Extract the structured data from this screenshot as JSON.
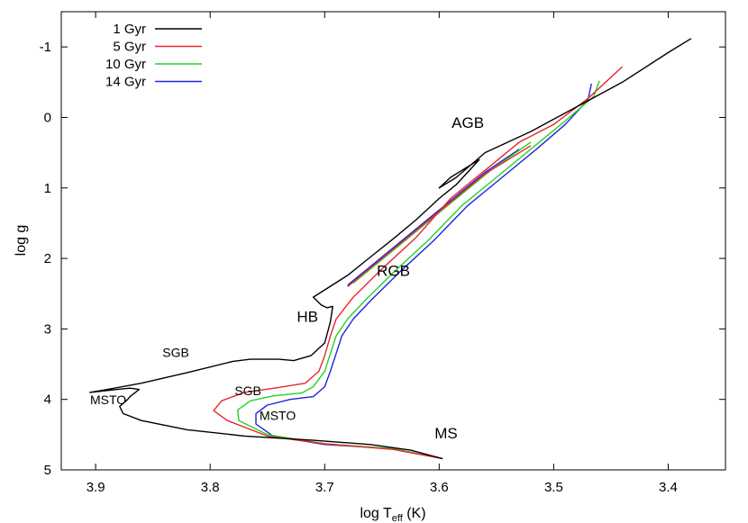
{
  "chart_data": {
    "type": "line",
    "xlabel_main": "log T",
    "xlabel_sub": "eff",
    "xlabel_unit": " (K)",
    "ylabel": "log g",
    "xlim": [
      3.93,
      3.35
    ],
    "ylim": [
      -1.5,
      5
    ],
    "x_ticks": [
      3.9,
      3.8,
      3.7,
      3.6,
      3.5,
      3.4
    ],
    "x_tick_labels": [
      "3.9",
      "3.8",
      "3.7",
      "3.6",
      "3.5",
      "3.4"
    ],
    "y_ticks": [
      -1,
      0,
      1,
      2,
      3,
      4,
      5
    ],
    "y_tick_labels": [
      "-1",
      "0",
      "1",
      "2",
      "3",
      "4",
      "5"
    ],
    "legend_position": "top-left",
    "series": [
      {
        "name": "1 Gyr",
        "color": "#000000",
        "points": [
          [
            3.597,
            4.84
          ],
          [
            3.625,
            4.72
          ],
          [
            3.66,
            4.64
          ],
          [
            3.71,
            4.58
          ],
          [
            3.77,
            4.52
          ],
          [
            3.82,
            4.43
          ],
          [
            3.86,
            4.3
          ],
          [
            3.876,
            4.2
          ],
          [
            3.879,
            4.1
          ],
          [
            3.872,
            4.0
          ],
          [
            3.87,
            3.96
          ],
          [
            3.862,
            3.86
          ],
          [
            3.87,
            3.84
          ],
          [
            3.888,
            3.87
          ],
          [
            3.905,
            3.9
          ],
          [
            3.89,
            3.86
          ],
          [
            3.86,
            3.77
          ],
          [
            3.82,
            3.62
          ],
          [
            3.78,
            3.46
          ],
          [
            3.765,
            3.43
          ],
          [
            3.74,
            3.43
          ],
          [
            3.727,
            3.45
          ],
          [
            3.712,
            3.38
          ],
          [
            3.7,
            3.2
          ],
          [
            3.695,
            2.9
          ],
          [
            3.693,
            2.68
          ],
          [
            3.698,
            2.7
          ],
          [
            3.703,
            2.66
          ],
          [
            3.71,
            2.55
          ],
          [
            3.68,
            2.24
          ],
          [
            3.66,
            1.98
          ],
          [
            3.64,
            1.72
          ],
          [
            3.62,
            1.45
          ],
          [
            3.6,
            1.15
          ],
          [
            3.585,
            0.95
          ],
          [
            3.565,
            0.6
          ],
          [
            3.59,
            0.85
          ],
          [
            3.6,
            1.0
          ],
          [
            3.585,
            0.85
          ],
          [
            3.56,
            0.5
          ],
          [
            3.52,
            0.2
          ],
          [
            3.48,
            -0.15
          ],
          [
            3.44,
            -0.5
          ],
          [
            3.4,
            -0.92
          ],
          [
            3.38,
            -1.12
          ]
        ]
      },
      {
        "name": "5 Gyr",
        "color": "#e8262a",
        "points": [
          [
            3.597,
            4.84
          ],
          [
            3.64,
            4.71
          ],
          [
            3.7,
            4.63
          ],
          [
            3.75,
            4.52
          ],
          [
            3.785,
            4.3
          ],
          [
            3.797,
            4.16
          ],
          [
            3.79,
            4.02
          ],
          [
            3.77,
            3.9
          ],
          [
            3.74,
            3.83
          ],
          [
            3.717,
            3.77
          ],
          [
            3.705,
            3.6
          ],
          [
            3.7,
            3.38
          ],
          [
            3.695,
            3.1
          ],
          [
            3.69,
            2.86
          ],
          [
            3.675,
            2.55
          ],
          [
            3.65,
            2.15
          ],
          [
            3.62,
            1.7
          ],
          [
            3.59,
            1.15
          ],
          [
            3.56,
            0.75
          ],
          [
            3.53,
            0.35
          ],
          [
            3.5,
            0.1
          ],
          [
            3.47,
            -0.27
          ],
          [
            3.44,
            -0.72
          ]
        ],
        "branch": [
          [
            3.68,
            2.4
          ],
          [
            3.65,
            2.0
          ],
          [
            3.62,
            1.6
          ],
          [
            3.59,
            1.2
          ],
          [
            3.56,
            0.8
          ],
          [
            3.52,
            0.4
          ]
        ]
      },
      {
        "name": "10 Gyr",
        "color": "#22d422",
        "points": [
          [
            3.597,
            4.84
          ],
          [
            3.64,
            4.7
          ],
          [
            3.7,
            4.63
          ],
          [
            3.75,
            4.5
          ],
          [
            3.775,
            4.3
          ],
          [
            3.776,
            4.15
          ],
          [
            3.765,
            4.02
          ],
          [
            3.745,
            3.95
          ],
          [
            3.72,
            3.91
          ],
          [
            3.71,
            3.82
          ],
          [
            3.7,
            3.6
          ],
          [
            3.695,
            3.35
          ],
          [
            3.69,
            3.1
          ],
          [
            3.68,
            2.86
          ],
          [
            3.665,
            2.6
          ],
          [
            3.64,
            2.2
          ],
          [
            3.61,
            1.75
          ],
          [
            3.58,
            1.25
          ],
          [
            3.55,
            0.85
          ],
          [
            3.52,
            0.45
          ],
          [
            3.49,
            0.05
          ],
          [
            3.465,
            -0.3
          ],
          [
            3.46,
            -0.52
          ]
        ],
        "branch": [
          [
            3.675,
            2.35
          ],
          [
            3.645,
            1.95
          ],
          [
            3.615,
            1.55
          ],
          [
            3.585,
            1.15
          ],
          [
            3.555,
            0.75
          ],
          [
            3.52,
            0.35
          ]
        ]
      },
      {
        "name": "14 Gyr",
        "color": "#2222e0",
        "points": [
          [
            3.597,
            4.84
          ],
          [
            3.64,
            4.7
          ],
          [
            3.7,
            4.64
          ],
          [
            3.745,
            4.52
          ],
          [
            3.76,
            4.35
          ],
          [
            3.76,
            4.2
          ],
          [
            3.75,
            4.08
          ],
          [
            3.73,
            4.0
          ],
          [
            3.71,
            3.96
          ],
          [
            3.7,
            3.82
          ],
          [
            3.695,
            3.6
          ],
          [
            3.69,
            3.35
          ],
          [
            3.685,
            3.1
          ],
          [
            3.675,
            2.86
          ],
          [
            3.66,
            2.6
          ],
          [
            3.635,
            2.2
          ],
          [
            3.605,
            1.75
          ],
          [
            3.575,
            1.25
          ],
          [
            3.545,
            0.85
          ],
          [
            3.515,
            0.45
          ],
          [
            3.49,
            0.1
          ],
          [
            3.47,
            -0.25
          ],
          [
            3.467,
            -0.48
          ]
        ],
        "branch": [
          [
            3.68,
            2.38
          ],
          [
            3.65,
            1.98
          ],
          [
            3.62,
            1.58
          ],
          [
            3.59,
            1.18
          ],
          [
            3.56,
            0.78
          ],
          [
            3.53,
            0.45
          ]
        ]
      }
    ],
    "annotations": [
      {
        "text": "AGB",
        "x": 3.575,
        "y": 0.15,
        "size": 17
      },
      {
        "text": "RGB",
        "x": 3.64,
        "y": 2.25,
        "size": 17
      },
      {
        "text": "HB",
        "x": 3.715,
        "y": 2.9,
        "size": 17
      },
      {
        "text": "SGB",
        "x": 3.83,
        "y": 3.4,
        "size": 14
      },
      {
        "text": "SGB",
        "x": 3.767,
        "y": 3.94,
        "size": 14
      },
      {
        "text": "MSTO",
        "x": 3.889,
        "y": 4.07,
        "size": 14
      },
      {
        "text": "MSTO",
        "x": 3.741,
        "y": 4.29,
        "size": 14
      },
      {
        "text": "MS",
        "x": 3.594,
        "y": 4.55,
        "size": 17
      }
    ]
  }
}
